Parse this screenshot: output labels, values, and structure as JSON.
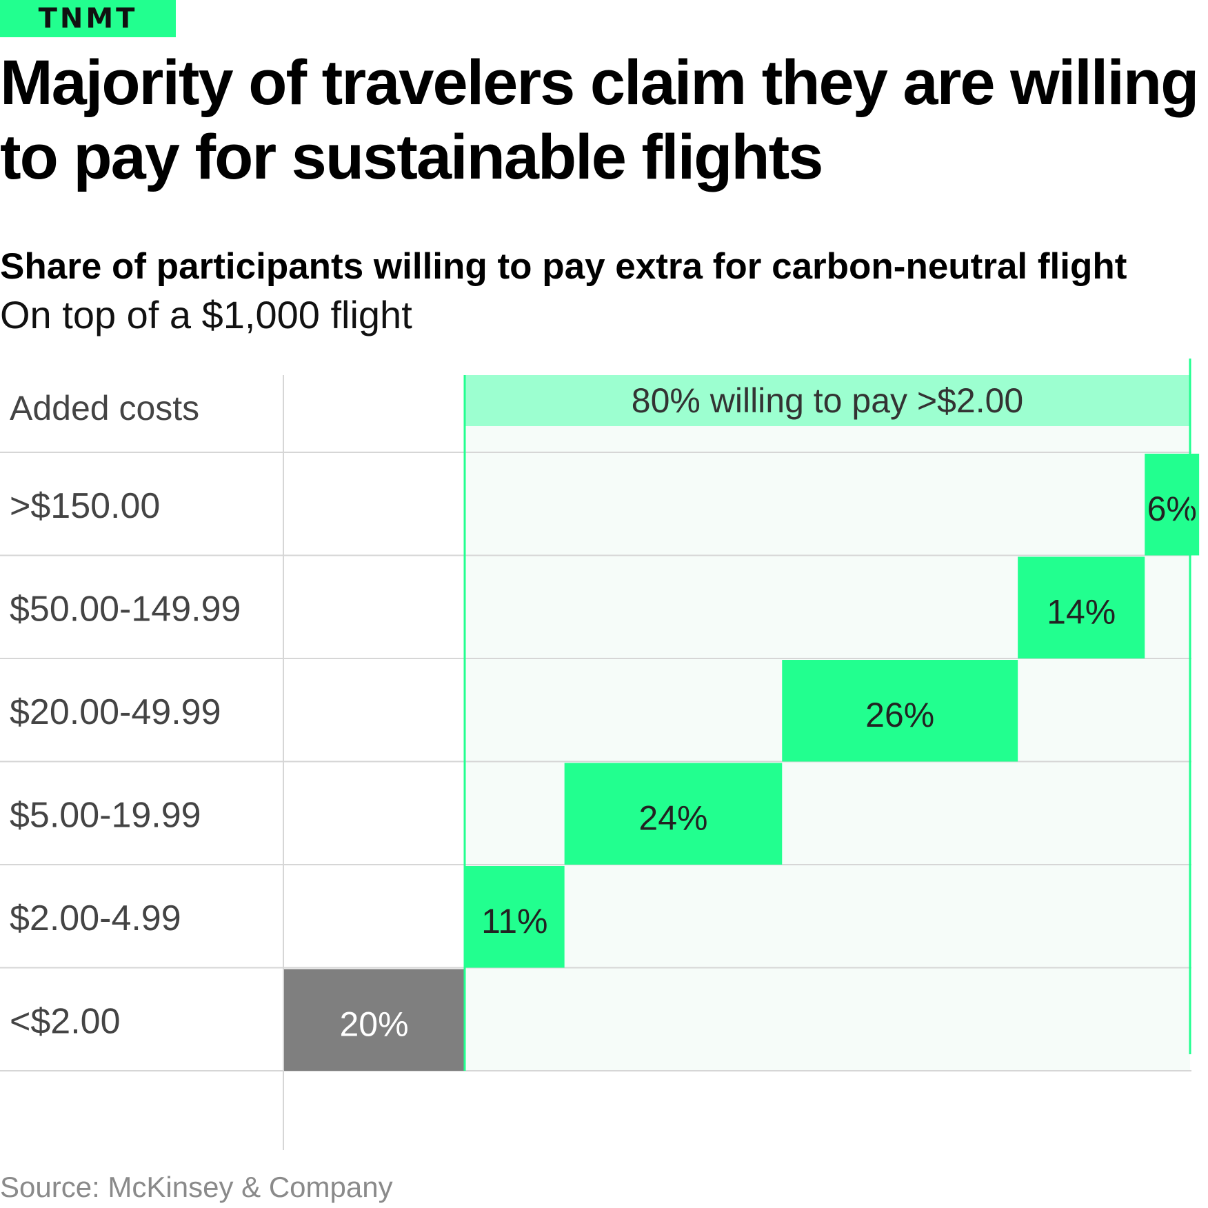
{
  "brand": {
    "tag": "TNMT"
  },
  "header": {
    "title": "Majority of travelers claim they are willing to pay for sustainable flights"
  },
  "colors": {
    "accent": "#22ff8f",
    "annotation_band": "#9cffd0",
    "plot_background": "#f6fcf9",
    "below_threshold": "#7f7f7f",
    "divider": "#d6d6d6"
  },
  "chart_data": {
    "type": "bar",
    "title": "Share of participants willing to pay extra for carbon-neutral flight",
    "subtitle": "On top of a $1,000 flight",
    "row_header": "Added costs",
    "categories": [
      ">$150.00",
      "$50.00-149.99",
      "$20.00-49.99",
      "$5.00-19.99",
      "$2.00-4.99",
      "<$2.00"
    ],
    "values": [
      6,
      14,
      26,
      24,
      11,
      20
    ],
    "labels": [
      "6%",
      "14%",
      "26%",
      "24%",
      "11%",
      "20%"
    ],
    "unit": "%",
    "layout": "waterfall-stacked",
    "xlim": [
      0,
      100
    ],
    "annotation": {
      "text": "80% willing to pay >$2.00",
      "value": 80,
      "range": [
        20,
        100
      ]
    },
    "source": "Source: McKinsey & Company"
  }
}
